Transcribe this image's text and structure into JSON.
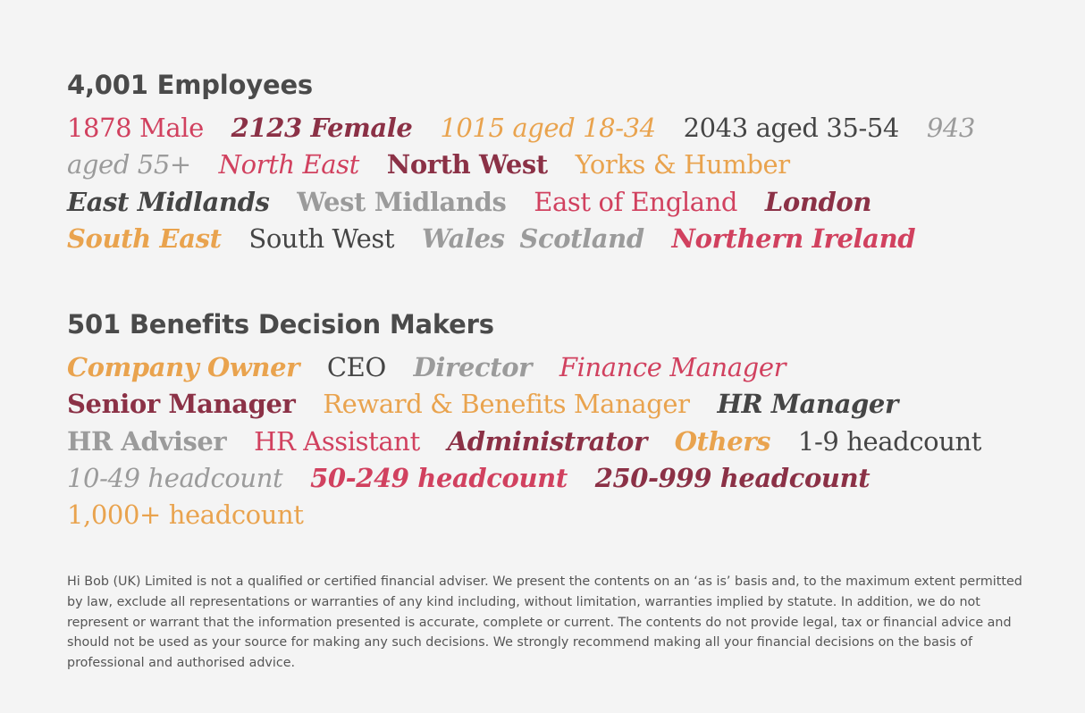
{
  "employees": {
    "heading": "4,001 Employees",
    "items": [
      {
        "text": "1878 Male",
        "color": "#d1415f"
      },
      {
        "text": "2123 Female",
        "color": "#8b3146"
      },
      {
        "text": "1015 aged 18-34",
        "color": "#e9a34e"
      },
      {
        "text": "2043 aged 35-54",
        "color": "#454545"
      },
      {
        "text": "943 aged 55+",
        "color": "#9b9b9b"
      },
      {
        "text": "North East",
        "color": "#d1415f"
      },
      {
        "text": "North West",
        "color": "#8b3146"
      },
      {
        "text": "Yorks & Humber",
        "color": "#e9a34e"
      },
      {
        "text": "East Midlands",
        "color": "#454545"
      },
      {
        "text": "West Midlands",
        "color": "#9b9b9b"
      },
      {
        "text": "East of England",
        "color": "#d1415f"
      },
      {
        "text": "London",
        "color": "#8b3146"
      },
      {
        "text": "South East",
        "color": "#e9a34e"
      },
      {
        "text": "South West",
        "color": "#454545"
      },
      {
        "text": "Wales",
        "color": "#9b9b9b"
      },
      {
        "text": "Scotland",
        "color": "#9b9b9b"
      },
      {
        "text": "Northern Ireland",
        "color": "#d1415f"
      }
    ]
  },
  "decision_makers": {
    "heading": "501 Benefits Decision Makers",
    "items": [
      {
        "text": "Company Owner",
        "color": "#e9a34e"
      },
      {
        "text": "CEO",
        "color": "#454545"
      },
      {
        "text": "Director",
        "color": "#9b9b9b"
      },
      {
        "text": "Finance Manager",
        "color": "#d1415f"
      },
      {
        "text": "Senior Manager",
        "color": "#8b3146"
      },
      {
        "text": "Reward & Benefits Manager",
        "color": "#e9a34e"
      },
      {
        "text": "HR Manager",
        "color": "#454545"
      },
      {
        "text": "HR Adviser",
        "color": "#9b9b9b"
      },
      {
        "text": "HR Assistant",
        "color": "#d1415f"
      },
      {
        "text": "Administrator",
        "color": "#8b3146"
      },
      {
        "text": "Others",
        "color": "#e9a34e"
      },
      {
        "text": "1-9 headcount",
        "color": "#454545"
      },
      {
        "text": "10-49 headcount",
        "color": "#9b9b9b"
      },
      {
        "text": "50-249 headcount",
        "color": "#d1415f"
      },
      {
        "text": "250-999 headcount",
        "color": "#8b3146"
      },
      {
        "text": "1,000+ headcount",
        "color": "#e9a34e"
      }
    ]
  },
  "disclaimer": "Hi Bob (UK) Limited is not a qualified or certified financial adviser. We present the contents on an ‘as is’ basis and, to the maximum extent permitted by law, exclude all representations or warranties of any kind including, without limitation, warranties implied by statute. In addition, we do not represent or warrant that the information presented is accurate, complete or current. The contents do not provide legal, tax or financial advice and should not be used as your source for making any such decisions. We strongly recommend making all your financial decisions on the basis of professional and authorised advice."
}
